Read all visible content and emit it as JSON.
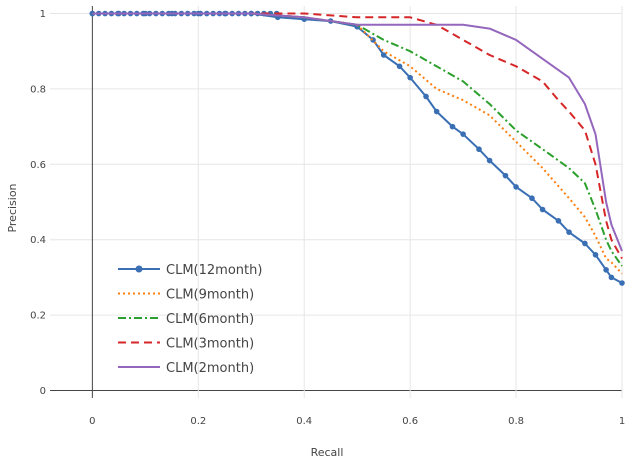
{
  "chart_data": {
    "type": "line",
    "title": "",
    "xlabel": "Recall",
    "ylabel": "Precision",
    "xlim": [
      -0.08,
      1.0
    ],
    "ylim": [
      -0.02,
      1.02
    ],
    "xticks": [
      0,
      0.2,
      0.4,
      0.6,
      0.8,
      1
    ],
    "yticks": [
      0,
      0.2,
      0.4,
      0.6,
      0.8,
      1
    ],
    "xtick_labels": [
      "0",
      "0.2",
      "0.4",
      "0.6",
      "0.8",
      "1"
    ],
    "ytick_labels": [
      "0",
      "0.2",
      "0.4",
      "0.6",
      "0.8",
      "1"
    ],
    "grid": true,
    "legend_position": "bottom-left",
    "series": [
      {
        "name": "CLM(12month)",
        "color": "#3a6fb4",
        "dash": "solid",
        "markers": true,
        "x": [
          0,
          0.05,
          0.1,
          0.15,
          0.2,
          0.25,
          0.3,
          0.35,
          0.4,
          0.45,
          0.5,
          0.53,
          0.55,
          0.58,
          0.6,
          0.63,
          0.65,
          0.68,
          0.7,
          0.73,
          0.75,
          0.78,
          0.8,
          0.83,
          0.85,
          0.88,
          0.9,
          0.93,
          0.95,
          0.97,
          0.98,
          1.0
        ],
        "y": [
          1,
          1,
          1,
          1,
          1,
          1,
          1,
          0.99,
          0.985,
          0.98,
          0.965,
          0.93,
          0.89,
          0.86,
          0.83,
          0.78,
          0.74,
          0.7,
          0.68,
          0.64,
          0.61,
          0.57,
          0.54,
          0.51,
          0.48,
          0.45,
          0.42,
          0.39,
          0.36,
          0.32,
          0.3,
          0.285
        ]
      },
      {
        "name": "CLM(9month)",
        "color": "#ff7f0e",
        "dash": "dot",
        "markers": false,
        "x": [
          0,
          0.1,
          0.2,
          0.3,
          0.4,
          0.45,
          0.5,
          0.55,
          0.6,
          0.65,
          0.7,
          0.75,
          0.8,
          0.85,
          0.9,
          0.93,
          0.95,
          0.97,
          0.98,
          1.0
        ],
        "y": [
          1,
          1,
          1,
          1,
          0.99,
          0.98,
          0.97,
          0.9,
          0.86,
          0.8,
          0.77,
          0.73,
          0.66,
          0.59,
          0.51,
          0.46,
          0.41,
          0.35,
          0.34,
          0.31
        ]
      },
      {
        "name": "CLM(6month)",
        "color": "#2ca02c",
        "dash": "dashdot",
        "markers": false,
        "x": [
          0,
          0.1,
          0.2,
          0.3,
          0.4,
          0.45,
          0.5,
          0.55,
          0.6,
          0.65,
          0.7,
          0.75,
          0.8,
          0.85,
          0.9,
          0.93,
          0.95,
          0.97,
          0.98,
          1.0
        ],
        "y": [
          1,
          1,
          1,
          1,
          0.99,
          0.98,
          0.97,
          0.93,
          0.9,
          0.86,
          0.82,
          0.76,
          0.69,
          0.64,
          0.59,
          0.55,
          0.48,
          0.4,
          0.37,
          0.33
        ]
      },
      {
        "name": "CLM(3month)",
        "color": "#d62728",
        "dash": "dash",
        "markers": false,
        "x": [
          0,
          0.1,
          0.2,
          0.3,
          0.4,
          0.45,
          0.5,
          0.55,
          0.6,
          0.65,
          0.7,
          0.75,
          0.8,
          0.85,
          0.88,
          0.9,
          0.93,
          0.95,
          0.97,
          0.98,
          1.0
        ],
        "y": [
          1,
          1,
          1,
          1,
          1,
          0.995,
          0.99,
          0.99,
          0.99,
          0.97,
          0.93,
          0.89,
          0.86,
          0.82,
          0.77,
          0.74,
          0.69,
          0.6,
          0.45,
          0.4,
          0.35
        ]
      },
      {
        "name": "CLM(2month)",
        "color": "#9467bd",
        "dash": "solid",
        "markers": false,
        "x": [
          0,
          0.1,
          0.2,
          0.3,
          0.4,
          0.5,
          0.55,
          0.6,
          0.65,
          0.7,
          0.75,
          0.8,
          0.85,
          0.9,
          0.93,
          0.95,
          0.97,
          0.98,
          1.0
        ],
        "y": [
          1,
          1,
          1,
          1,
          0.99,
          0.97,
          0.97,
          0.97,
          0.97,
          0.97,
          0.96,
          0.93,
          0.88,
          0.83,
          0.76,
          0.68,
          0.5,
          0.44,
          0.37
        ]
      }
    ]
  }
}
